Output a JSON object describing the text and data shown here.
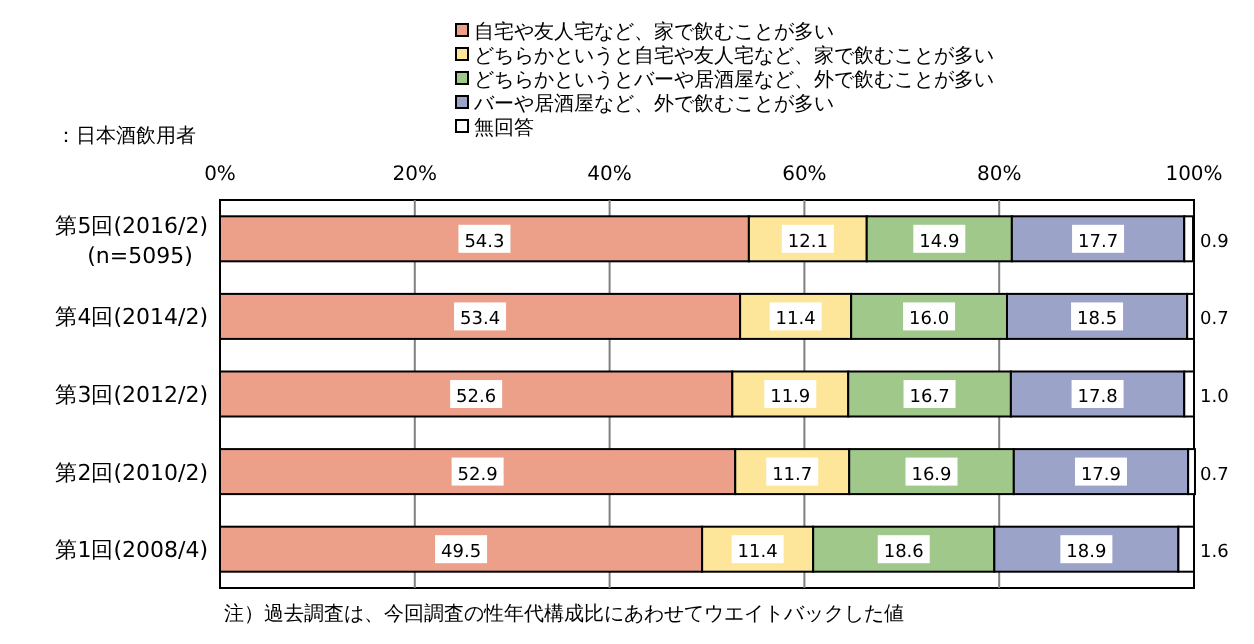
{
  "chart_data": {
    "type": "bar",
    "orientation": "horizontal",
    "stacked": true,
    "categories": [
      "第5回(2016/2)\n(n=5095)",
      "第4回(2014/2)",
      "第3回(2012/2)",
      "第2回(2010/2)",
      "第1回(2008/4)"
    ],
    "series": [
      {
        "name": "自宅や友人宅など、家で飲むことが多い",
        "color": "#eca08a",
        "values": [
          54.3,
          53.4,
          52.6,
          52.9,
          49.5
        ],
        "value_labels": [
          "54.3",
          "53.4",
          "52.6",
          "52.9",
          "49.5"
        ]
      },
      {
        "name": "どちらかというと自宅や友人宅など、家で飲むことが多い",
        "color": "#fde699",
        "values": [
          12.1,
          11.4,
          11.9,
          11.7,
          11.4
        ],
        "value_labels": [
          "12.1",
          "11.4",
          "11.9",
          "11.7",
          "11.4"
        ]
      },
      {
        "name": "どちらかというとバーや居酒屋など、外で飲むことが多い",
        "color": "#a0c88a",
        "values": [
          14.9,
          16.0,
          16.7,
          16.9,
          18.6
        ],
        "value_labels": [
          "14.9",
          "16.0",
          "16.7",
          "16.9",
          "18.6"
        ]
      },
      {
        "name": "バーや居酒屋など、外で飲むことが多い",
        "color": "#9ba3c8",
        "values": [
          17.7,
          18.5,
          17.8,
          17.9,
          18.9
        ],
        "value_labels": [
          "17.7",
          "18.5",
          "17.8",
          "17.9",
          "18.9"
        ]
      },
      {
        "name": "無回答",
        "color": "#ffffff",
        "values": [
          0.9,
          0.7,
          1.0,
          0.7,
          1.6
        ],
        "value_labels": [
          "0.9",
          "0.7",
          "1.0",
          "0.7",
          "1.6"
        ]
      }
    ],
    "xlim": [
      0,
      100
    ],
    "xticks": [
      {
        "value": 0,
        "label": "0%"
      },
      {
        "value": 20,
        "label": "20%"
      },
      {
        "value": 40,
        "label": "40%"
      },
      {
        "value": 60,
        "label": "60%"
      },
      {
        "value": 80,
        "label": "80%"
      },
      {
        "value": 100,
        "label": "100%"
      }
    ],
    "grid": "x",
    "legend": "top",
    "annotations": [
      "：日本酒飲用者",
      "注）過去調査は、今回調査の性年代構成比にあわせてウエイトバックした値"
    ]
  }
}
